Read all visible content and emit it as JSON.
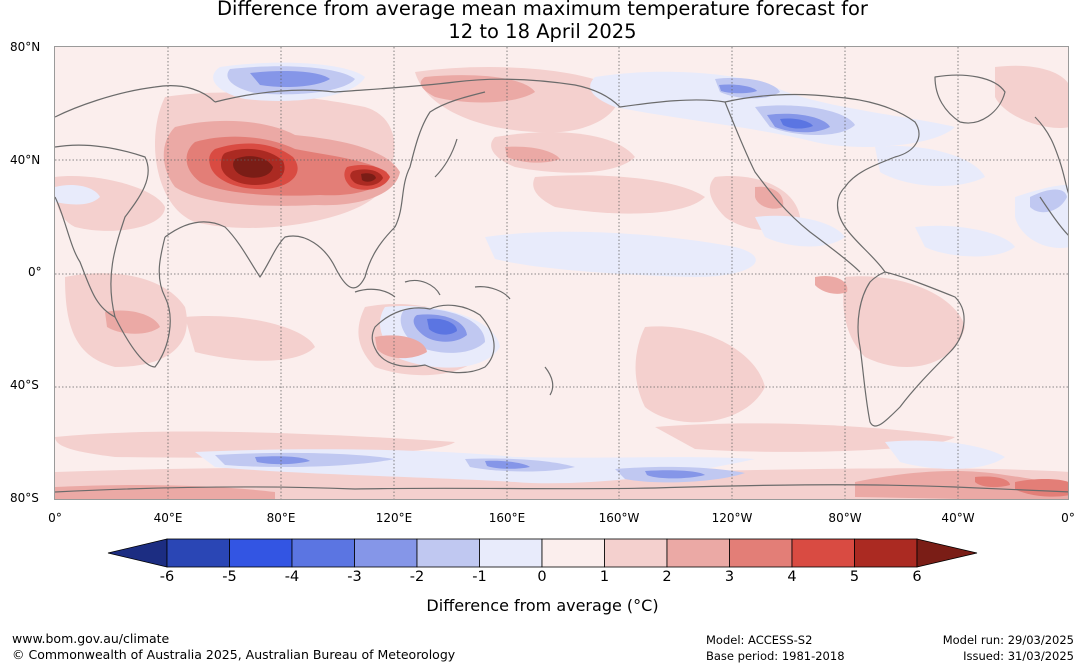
{
  "map": {
    "title_line1": "Difference from average mean maximum temperature forecast for",
    "title_line2": "12 to 18 April 2025",
    "latitude_labels": [
      "80°N",
      "40°N",
      "0°",
      "40°S",
      "80°S"
    ],
    "longitude_labels": [
      "0°",
      "40°E",
      "80°E",
      "120°E",
      "160°E",
      "160°W",
      "120°W",
      "80°W",
      "40°W",
      "0°"
    ]
  },
  "legend": {
    "title": "Difference from average (°C)",
    "ticks": [
      "-6",
      "-5",
      "-4",
      "-3",
      "-2",
      "-1",
      "0",
      "1",
      "2",
      "3",
      "4",
      "5",
      "6"
    ],
    "colors": [
      "#1c2d82",
      "#2a46b5",
      "#3355e3",
      "#5b75e2",
      "#8596e8",
      "#c0c8f1",
      "#e8ebfb",
      "#fbeeed",
      "#f4d0ce",
      "#eba9a5",
      "#e37e77",
      "#d94b42",
      "#ab2a22",
      "#7a1d16"
    ]
  },
  "footer": {
    "site": "www.bom.gov.au/climate",
    "copyright": "© Commonwealth of Australia 2025, Australian Bureau of Meteorology",
    "model": "Model: ACCESS-S2",
    "base_period": "Base period: 1981-2018",
    "model_run": "Model run: 29/03/2025",
    "issued": "Issued: 31/03/2025"
  }
}
